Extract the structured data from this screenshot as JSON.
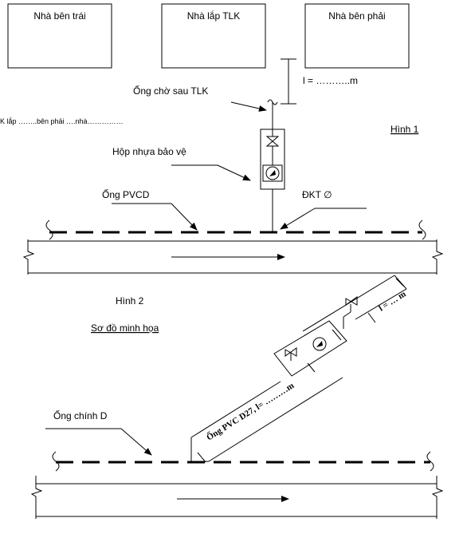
{
  "houses": {
    "left": "Nhà bên trái",
    "middle": "Nhà lắp TLK",
    "right": "Nhà bên phải"
  },
  "length_label": "l =  ………..m",
  "standby_pipe_label": "Ống chờ sau TLK",
  "cut_note": "K lắp ……..bên phải ….nhà……………",
  "figure1_label": "Hình 1",
  "plastic_box_label": "Hộp nhựa bảo vệ",
  "pvc_pipe_label": "Ống PVCD",
  "dkt_label": "ĐKT ∅",
  "figure2_label": "Hình 2",
  "illustration_label": "Sơ đồ minh họa",
  "main_pipe_label": "Ống chính D",
  "branch_pipe_label": "Ống PVC D27, l= ………m",
  "branch_length_label": "l = … m"
}
